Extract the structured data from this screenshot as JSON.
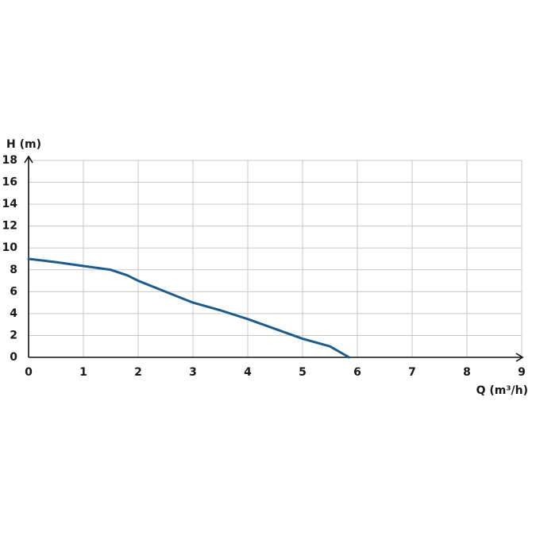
{
  "chart_data": {
    "type": "line",
    "x_label": "Q (m³/h)",
    "y_label": "H (m)",
    "series": [
      {
        "color": "#1d5c8c",
        "x": [
          0,
          0.5,
          1,
          1.5,
          1.8,
          2,
          2.5,
          3,
          3.5,
          4,
          4.5,
          5,
          5.5,
          5.85
        ],
        "values": [
          9,
          8.7,
          8.35,
          8,
          7.5,
          7,
          6,
          5,
          4.3,
          3.5,
          2.6,
          1.7,
          1,
          0
        ]
      }
    ],
    "xlim": [
      0,
      9
    ],
    "xticks": [
      0,
      1,
      2,
      3,
      4,
      5,
      6,
      7,
      8,
      9
    ],
    "ylim": [
      0,
      18
    ],
    "yticks": [
      0,
      2,
      4,
      6,
      8,
      10,
      12,
      14,
      16,
      18
    ],
    "grid": true
  }
}
